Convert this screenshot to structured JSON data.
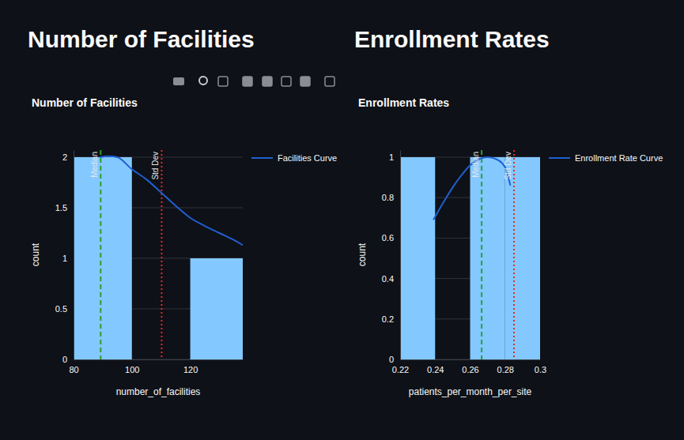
{
  "headings": [
    "Number of Facilities",
    "Enrollment Rates"
  ],
  "chart_data": [
    {
      "type": "histogram",
      "title": "Number of Facilities",
      "x_label": "number_of_facilities",
      "y_label": "count",
      "bins": [
        80,
        100,
        120,
        140
      ],
      "counts": [
        2,
        0,
        1
      ],
      "color": "#83c9ff",
      "series": [
        {
          "name": "Facilities Curve",
          "type": "line",
          "color": "#1f5fd1",
          "x": [
            89,
            92,
            95,
            100,
            105,
            110,
            115,
            120,
            125,
            130,
            135,
            138
          ],
          "values": [
            2.0,
            2.01,
            2.0,
            1.88,
            1.78,
            1.65,
            1.52,
            1.4,
            1.32,
            1.25,
            1.18,
            1.13
          ]
        }
      ],
      "vlines": [
        {
          "text": "Median",
          "x": 89.3,
          "color": "#2ca02c",
          "line_style": "dashed"
        },
        {
          "text": "Std Dev",
          "x": 110.2,
          "color": "#e8262b",
          "line_style": "dotted"
        }
      ],
      "xlim": [
        80,
        138
      ],
      "xticks": [
        80,
        100,
        120
      ],
      "ylim": [
        0,
        2.07
      ],
      "yticks": [
        0,
        0.5,
        1,
        1.5,
        2
      ],
      "grid": true,
      "legend": "right"
    },
    {
      "type": "histogram",
      "title": "Enrollment Rates",
      "x_label": "patients_per_month_per_site",
      "y_label": "count",
      "bins": [
        0.22,
        0.24,
        0.26,
        0.28,
        0.3
      ],
      "counts": [
        1,
        0,
        1,
        1
      ],
      "color": "#83c9ff",
      "series": [
        {
          "name": "Enrollment Rate Curve",
          "type": "line",
          "color": "#1f5fd1",
          "x": [
            0.239,
            0.245,
            0.25,
            0.255,
            0.26,
            0.265,
            0.27,
            0.275,
            0.28,
            0.283
          ],
          "values": [
            0.69,
            0.78,
            0.85,
            0.91,
            0.96,
            0.99,
            1.0,
            0.99,
            0.95,
            0.86
          ]
        }
      ],
      "vlines": [
        {
          "text": "Median",
          "x": 0.2666,
          "color": "#2ca02c",
          "line_style": "dashed"
        },
        {
          "text": "Std Dev",
          "x": 0.2851,
          "color": "#e8262b",
          "line_style": "dotted"
        }
      ],
      "xlim": [
        0.22,
        0.3
      ],
      "xticks": [
        0.22,
        0.24,
        0.26,
        0.28,
        0.3
      ],
      "ylim": [
        0,
        1.035
      ],
      "yticks": [
        0,
        0.2,
        0.4,
        0.6,
        0.8,
        1
      ],
      "grid": true,
      "legend": "right"
    }
  ]
}
